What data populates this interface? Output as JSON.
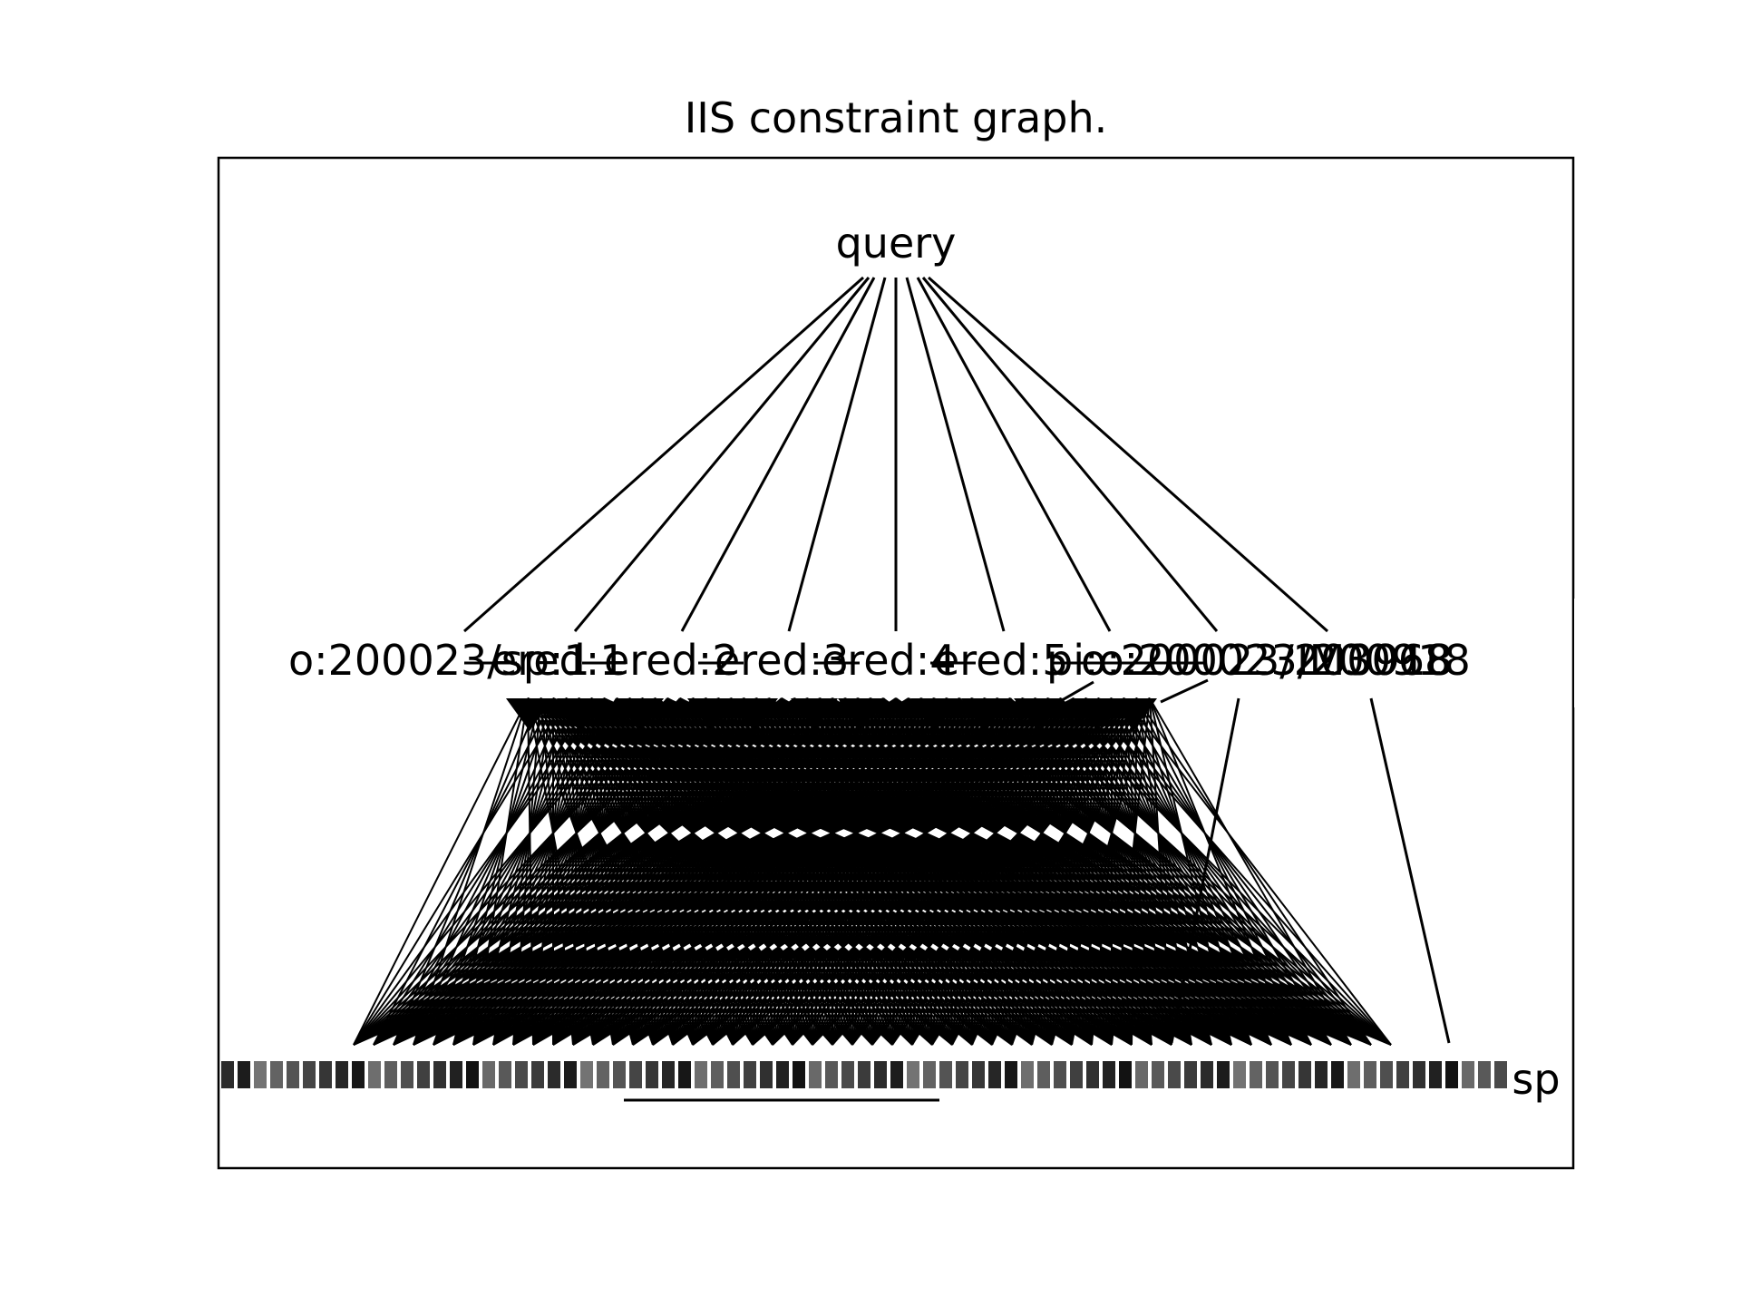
{
  "figure": {
    "title": "IIS constraint graph.",
    "background": "#ffffff",
    "stroke": "#000000"
  },
  "graph": {
    "root": "query",
    "middle_nodes": [
      "o:200023/sp:1",
      "ered:1",
      "ered:2",
      "ered:3",
      "ered:4",
      "ered:5",
      "pi:o:200023/200918",
      "o:200023/200918",
      "IM3068"
    ],
    "bottom_label_fragment": "sp"
  }
}
